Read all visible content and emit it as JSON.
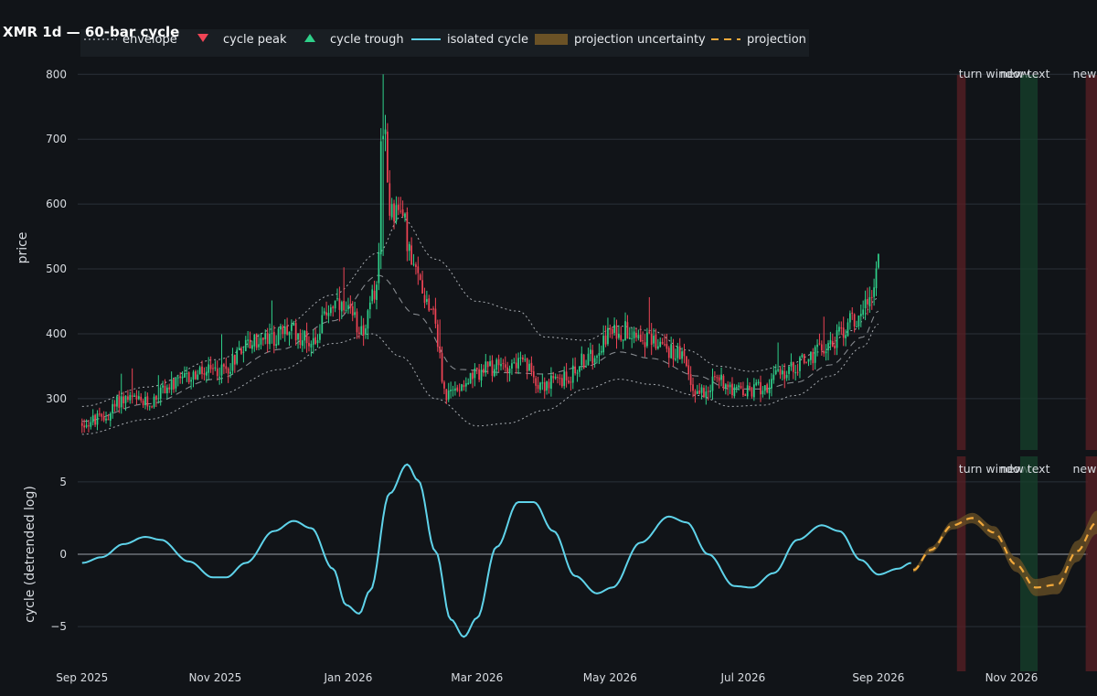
{
  "chart_data": {
    "type": "candlestick_with_cycle_panel",
    "title": "XMR 1d — 60-bar cycle",
    "legend": [
      {
        "name": "envelope",
        "style": "dotted",
        "color": "#b8bcc2"
      },
      {
        "name": "cycle peak",
        "style": "triangle-down",
        "color": "#ef4455"
      },
      {
        "name": "cycle trough",
        "style": "triangle-up",
        "color": "#2fd08a"
      },
      {
        "name": "isolated cycle",
        "style": "line",
        "color": "#5fd3ea"
      },
      {
        "name": "projection uncertainty",
        "style": "band",
        "color": "#6b5226"
      },
      {
        "name": "projection",
        "style": "dashed",
        "color": "#f2a93b"
      }
    ],
    "colors": {
      "up": "#2fd08a",
      "down": "#ef4455",
      "envelope": "#b8bcc2",
      "cycle": "#5fd3ea",
      "projection": "#f2a93b",
      "uncertainty": "#6b5226"
    },
    "x_tick_labels": [
      "Sep 2025",
      "Nov 2025",
      "Jan 2026",
      "Mar 2026",
      "May 2026",
      "Jul 2026",
      "Sep 2026",
      "Nov 2026"
    ],
    "x_ticks": [
      "2025-09-01",
      "2025-11-01",
      "2026-01-01",
      "2026-03-01",
      "2026-05-01",
      "2026-07-01",
      "2026-09-01",
      "2026-11-01"
    ],
    "xlim": [
      "2025-08-30",
      "2026-12-06"
    ],
    "price_panel": {
      "ylabel": "price",
      "ylim": [
        235,
        830
      ],
      "yticks": [
        300,
        400,
        500,
        600,
        700,
        800
      ],
      "price_anchors": [
        [
          "2025-09-01",
          262
        ],
        [
          "2025-09-10",
          268
        ],
        [
          "2025-09-20",
          300
        ],
        [
          "2025-10-01",
          292
        ],
        [
          "2025-10-10",
          318
        ],
        [
          "2025-10-25",
          338
        ],
        [
          "2025-11-05",
          345
        ],
        [
          "2025-11-15",
          385
        ],
        [
          "2025-11-25",
          390
        ],
        [
          "2025-12-05",
          405
        ],
        [
          "2025-12-15",
          390
        ],
        [
          "2025-12-25",
          445
        ],
        [
          "2025-12-31",
          430
        ],
        [
          "2026-01-08",
          410
        ],
        [
          "2026-01-14",
          470
        ],
        [
          "2026-01-17",
          740
        ],
        [
          "2026-01-20",
          600
        ],
        [
          "2026-01-25",
          585
        ],
        [
          "2026-02-01",
          490
        ],
        [
          "2026-02-08",
          445
        ],
        [
          "2026-02-15",
          305
        ],
        [
          "2026-02-25",
          330
        ],
        [
          "2026-03-05",
          345
        ],
        [
          "2026-03-20",
          355
        ],
        [
          "2026-04-01",
          322
        ],
        [
          "2026-04-10",
          330
        ],
        [
          "2026-04-20",
          360
        ],
        [
          "2026-05-01",
          400
        ],
        [
          "2026-05-10",
          408
        ],
        [
          "2026-05-20",
          390
        ],
        [
          "2026-06-01",
          370
        ],
        [
          "2026-06-10",
          310
        ],
        [
          "2026-06-20",
          330
        ],
        [
          "2026-07-01",
          308
        ],
        [
          "2026-07-10",
          318
        ],
        [
          "2026-07-20",
          340
        ],
        [
          "2026-07-30",
          360
        ],
        [
          "2026-08-10",
          385
        ],
        [
          "2026-08-20",
          420
        ],
        [
          "2026-08-28",
          455
        ],
        [
          "2026-09-01",
          510
        ]
      ],
      "envelope_upper": [
        [
          "2025-09-01",
          288
        ],
        [
          "2025-10-01",
          318
        ],
        [
          "2025-11-01",
          360
        ],
        [
          "2025-12-01",
          410
        ],
        [
          "2025-12-25",
          460
        ],
        [
          "2026-01-15",
          525
        ],
        [
          "2026-01-25",
          580
        ],
        [
          "2026-02-10",
          515
        ],
        [
          "2026-03-01",
          450
        ],
        [
          "2026-03-20",
          435
        ],
        [
          "2026-04-01",
          395
        ],
        [
          "2026-04-20",
          390
        ],
        [
          "2026-05-05",
          412
        ],
        [
          "2026-05-20",
          405
        ],
        [
          "2026-06-05",
          375
        ],
        [
          "2026-06-20",
          350
        ],
        [
          "2026-07-05",
          342
        ],
        [
          "2026-07-20",
          350
        ],
        [
          "2026-08-05",
          372
        ],
        [
          "2026-08-20",
          405
        ],
        [
          "2026-09-01",
          455
        ]
      ],
      "envelope_lower": [
        [
          "2025-09-01",
          245
        ],
        [
          "2025-10-01",
          268
        ],
        [
          "2025-11-01",
          305
        ],
        [
          "2025-12-01",
          345
        ],
        [
          "2025-12-25",
          385
        ],
        [
          "2026-01-12",
          400
        ],
        [
          "2026-01-25",
          365
        ],
        [
          "2026-02-10",
          300
        ],
        [
          "2026-03-01",
          258
        ],
        [
          "2026-03-15",
          262
        ],
        [
          "2026-04-01",
          282
        ],
        [
          "2026-04-20",
          315
        ],
        [
          "2026-05-05",
          330
        ],
        [
          "2026-05-20",
          322
        ],
        [
          "2026-06-10",
          305
        ],
        [
          "2026-06-25",
          288
        ],
        [
          "2026-07-10",
          290
        ],
        [
          "2026-07-25",
          305
        ],
        [
          "2026-08-10",
          335
        ],
        [
          "2026-08-25",
          380
        ],
        [
          "2026-09-01",
          415
        ]
      ],
      "envelope_mid": [
        [
          "2025-09-01",
          265
        ],
        [
          "2025-10-01",
          292
        ],
        [
          "2025-11-01",
          330
        ],
        [
          "2025-12-01",
          376
        ],
        [
          "2025-12-25",
          420
        ],
        [
          "2026-01-15",
          490
        ],
        [
          "2026-02-01",
          430
        ],
        [
          "2026-02-20",
          345
        ],
        [
          "2026-03-15",
          340
        ],
        [
          "2026-04-01",
          338
        ],
        [
          "2026-04-20",
          350
        ],
        [
          "2026-05-05",
          372
        ],
        [
          "2026-05-20",
          362
        ],
        [
          "2026-06-10",
          335
        ],
        [
          "2026-06-25",
          315
        ],
        [
          "2026-07-10",
          315
        ],
        [
          "2026-07-25",
          325
        ],
        [
          "2026-08-10",
          352
        ],
        [
          "2026-08-25",
          395
        ],
        [
          "2026-09-01",
          435
        ]
      ],
      "spike": {
        "date": "2026-01-17",
        "high": 800,
        "low": 520
      }
    },
    "cycle_panel": {
      "ylabel": "cycle (detrended log)",
      "ylim": [
        -7.2,
        7.2
      ],
      "yticks": [
        -5,
        0,
        5
      ],
      "zero_line": true,
      "isolated_cycle": [
        [
          "2025-09-01",
          -0.6
        ],
        [
          "2025-09-10",
          -0.2
        ],
        [
          "2025-09-20",
          0.7
        ],
        [
          "2025-09-30",
          1.2
        ],
        [
          "2025-10-07",
          1.0
        ],
        [
          "2025-10-20",
          -0.5
        ],
        [
          "2025-10-31",
          -1.6
        ],
        [
          "2025-11-06",
          -1.6
        ],
        [
          "2025-11-15",
          -0.6
        ],
        [
          "2025-11-28",
          1.6
        ],
        [
          "2025-12-07",
          2.3
        ],
        [
          "2025-12-15",
          1.8
        ],
        [
          "2025-12-25",
          -1.0
        ],
        [
          "2025-12-31",
          -3.5
        ],
        [
          "2026-01-06",
          -4.1
        ],
        [
          "2026-01-11",
          -2.5
        ],
        [
          "2026-01-20",
          4.2
        ],
        [
          "2026-01-28",
          6.2
        ],
        [
          "2026-02-02",
          5.1
        ],
        [
          "2026-02-10",
          0.2
        ],
        [
          "2026-02-17",
          -4.5
        ],
        [
          "2026-02-23",
          -5.7
        ],
        [
          "2026-03-01",
          -4.4
        ],
        [
          "2026-03-10",
          0.5
        ],
        [
          "2026-03-20",
          3.6
        ],
        [
          "2026-03-27",
          3.6
        ],
        [
          "2026-04-05",
          1.6
        ],
        [
          "2026-04-15",
          -1.5
        ],
        [
          "2026-04-25",
          -2.7
        ],
        [
          "2026-05-02",
          -2.3
        ],
        [
          "2026-05-15",
          0.8
        ],
        [
          "2026-05-28",
          2.6
        ],
        [
          "2026-06-05",
          2.2
        ],
        [
          "2026-06-15",
          0.0
        ],
        [
          "2026-06-27",
          -2.2
        ],
        [
          "2026-07-05",
          -2.3
        ],
        [
          "2026-07-15",
          -1.3
        ],
        [
          "2026-07-26",
          1.0
        ],
        [
          "2026-08-06",
          2.0
        ],
        [
          "2026-08-14",
          1.6
        ],
        [
          "2026-08-24",
          -0.4
        ],
        [
          "2026-09-01",
          -1.4
        ],
        [
          "2026-09-10",
          -1.0
        ],
        [
          "2026-09-16",
          -0.6
        ]
      ],
      "projection": [
        [
          "2026-09-17",
          -1.1
        ],
        [
          "2026-09-25",
          0.3
        ],
        [
          "2026-10-05",
          2.0
        ],
        [
          "2026-10-14",
          2.5
        ],
        [
          "2026-10-24",
          1.5
        ],
        [
          "2026-11-03",
          -0.7
        ],
        [
          "2026-11-12",
          -2.3
        ],
        [
          "2026-11-22",
          -2.1
        ],
        [
          "2026-12-01",
          0.2
        ],
        [
          "2026-12-10",
          2.2
        ],
        [
          "2026-12-16",
          2.5
        ]
      ],
      "projection_band_halfwidth": [
        0.15,
        0.85
      ]
    },
    "bands": [
      {
        "start": "2026-10-07",
        "end": "2026-10-11",
        "color": "#5a1f24",
        "label": "turn window",
        "panels": "both"
      },
      {
        "start": "2026-11-05",
        "end": "2026-11-13",
        "color": "#16402b",
        "label": "new text",
        "panels": "both"
      },
      {
        "start": "2026-12-05",
        "end": "2026-12-16",
        "color": "#5a1f24",
        "label": "new text",
        "panels": "both"
      }
    ]
  }
}
